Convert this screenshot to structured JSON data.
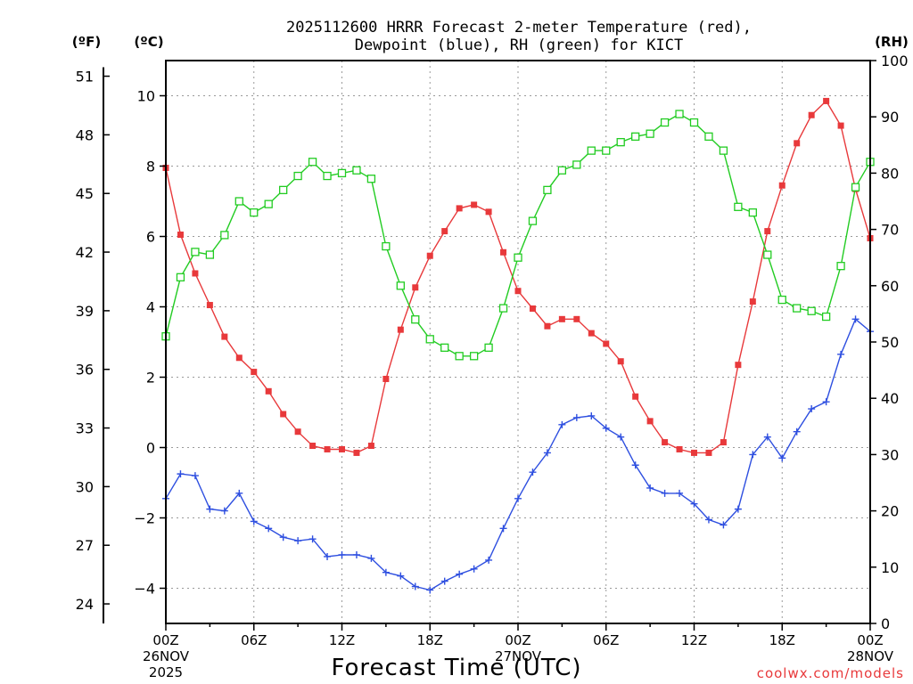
{
  "chart_data": {
    "type": "line",
    "title_line1": "2025112600 HRRR Forecast 2-meter Temperature (red),",
    "title_line2": "Dewpoint (blue), RH (green) for KICT",
    "xlabel": "Forecast Time (UTC)",
    "watermark": "coolwx.com/models",
    "unit_f": "(ºF)",
    "unit_c": "(ºC)",
    "unit_rh": "(RH)",
    "x_ticks": [
      {
        "hour": 0,
        "label": "00Z",
        "date1": "26NOV",
        "date2": "2025"
      },
      {
        "hour": 6,
        "label": "06Z"
      },
      {
        "hour": 12,
        "label": "12Z"
      },
      {
        "hour": 18,
        "label": "18Z"
      },
      {
        "hour": 24,
        "label": "00Z",
        "date1": "27NOV"
      },
      {
        "hour": 30,
        "label": "06Z"
      },
      {
        "hour": 36,
        "label": "12Z"
      },
      {
        "hour": 42,
        "label": "18Z"
      },
      {
        "hour": 48,
        "label": "00Z",
        "date1": "28NOV"
      }
    ],
    "xlim": [
      0,
      48
    ],
    "ylim_c": [
      -5,
      11
    ],
    "ylim_rh": [
      0,
      100
    ],
    "c_ticks": [
      "−4",
      "−2",
      "0",
      "2",
      "4",
      "6",
      "8",
      "10"
    ],
    "f_ticks": [
      "24",
      "27",
      "30",
      "33",
      "36",
      "39",
      "42",
      "45",
      "48",
      "51"
    ],
    "rh_ticks": [
      "0",
      "10",
      "20",
      "30",
      "40",
      "50",
      "60",
      "70",
      "80",
      "90",
      "100"
    ],
    "colors": {
      "temperature": "#e8393b",
      "dewpoint": "#2e4fe0",
      "rh": "#22cc22"
    },
    "series": [
      {
        "key": "temperature",
        "axis": "c",
        "marker": "filled-square",
        "values": [
          7.95,
          6.05,
          4.95,
          4.05,
          3.15,
          2.55,
          2.15,
          1.6,
          0.95,
          0.45,
          0.05,
          -0.05,
          -0.05,
          -0.15,
          0.05,
          1.95,
          3.35,
          4.55,
          5.45,
          6.15,
          6.8,
          6.9,
          6.7,
          5.55,
          4.45,
          3.95,
          3.45,
          3.65,
          3.65,
          3.25,
          2.95,
          2.45,
          1.45,
          0.75,
          0.15,
          -0.05,
          -0.15,
          -0.15,
          0.15,
          2.35,
          4.15,
          6.15,
          7.45,
          8.65,
          9.45,
          9.85,
          9.15,
          7.35,
          5.95
        ]
      },
      {
        "key": "dewpoint",
        "axis": "c",
        "marker": "plus",
        "values": [
          -1.45,
          -0.75,
          -0.8,
          -1.75,
          -1.8,
          -1.3,
          -2.1,
          -2.3,
          -2.55,
          -2.65,
          -2.6,
          -3.1,
          -3.05,
          -3.05,
          -3.15,
          -3.55,
          -3.65,
          -3.95,
          -4.05,
          -3.8,
          -3.6,
          -3.45,
          -3.2,
          -2.3,
          -1.45,
          -0.7,
          -0.15,
          0.65,
          0.85,
          0.9,
          0.55,
          0.3,
          -0.5,
          -1.15,
          -1.3,
          -1.3,
          -1.6,
          -2.05,
          -2.2,
          -1.75,
          -0.2,
          0.3,
          -0.3,
          0.45,
          1.1,
          1.3,
          2.65,
          3.65,
          3.3
        ]
      },
      {
        "key": "rh",
        "axis": "rh",
        "marker": "open-square",
        "values": [
          51,
          61.5,
          66,
          65.5,
          69,
          75,
          73,
          74.5,
          77,
          79.5,
          82,
          79.5,
          80,
          80.5,
          79,
          67,
          60,
          54,
          50.5,
          49,
          47.5,
          47.5,
          49,
          56,
          65,
          71.5,
          77,
          80.5,
          81.5,
          84,
          84,
          85.5,
          86.5,
          87,
          89,
          90.5,
          89,
          86.5,
          84,
          74,
          73,
          65.5,
          57.5,
          56,
          55.5,
          54.5,
          63.5,
          77.5,
          82
        ]
      }
    ]
  }
}
